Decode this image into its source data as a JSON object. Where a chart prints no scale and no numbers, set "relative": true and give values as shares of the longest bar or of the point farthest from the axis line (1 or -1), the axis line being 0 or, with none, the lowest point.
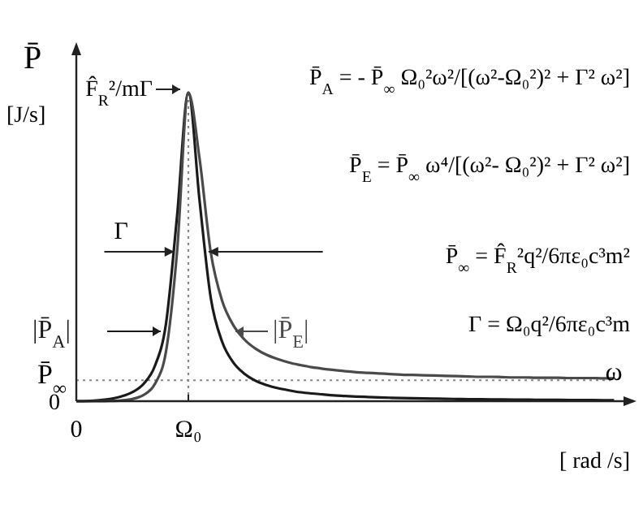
{
  "chart_data": {
    "type": "line",
    "relative": true,
    "ylabel": "P̄",
    "xlabel": "ω",
    "categories": [
      "0",
      null,
      null,
      null,
      null,
      null,
      null,
      null,
      null,
      null,
      "Ω₀",
      null,
      null,
      null,
      null,
      null,
      null,
      null,
      null,
      null,
      null,
      null,
      null,
      null,
      null,
      null,
      null,
      null,
      null,
      null,
      null,
      null,
      null,
      null,
      null,
      null,
      null,
      null,
      null,
      null,
      null,
      null,
      null,
      null,
      null,
      null,
      null,
      null,
      null
    ],
    "series": [
      {
        "name": "|P̄$_{A}$|",
        "color": "#1a1a1a",
        "values": [
          0,
          0.0007,
          0.0029,
          0.0073,
          0.0151,
          0.029,
          0.056,
          0.113,
          0.25,
          0.603,
          1,
          0.65,
          0.335,
          0.194,
          0.126,
          0.089,
          0.066,
          0.052,
          0.042,
          0.035,
          0.029,
          0.025,
          0.022,
          0.019,
          0.017,
          0.015,
          0.0136,
          0.0123,
          0.0112,
          0.0102,
          0.0094,
          0.0087,
          0.0081,
          0.0075,
          0.007,
          0.0065,
          0.0061,
          0.0057,
          0.0054,
          0.0051,
          0.0048,
          0.0045,
          0.0043,
          0.0041,
          0.0039,
          0.0037,
          0.0035,
          0.0033,
          0.0032
        ]
      },
      {
        "name": "|P̄$_{E}$|",
        "color": "#4a4a4a",
        "values": [
          0,
          0,
          0.0001,
          0.0007,
          0.0024,
          0.007,
          0.02,
          0.055,
          0.16,
          0.488,
          1,
          0.786,
          0.482,
          0.327,
          0.247,
          0.2,
          0.17,
          0.15,
          0.136,
          0.125,
          0.117,
          0.11,
          0.105,
          0.101,
          0.097,
          0.094,
          0.092,
          0.09,
          0.088,
          0.086,
          0.085,
          0.084,
          0.083,
          0.082,
          0.081,
          0.08,
          0.079,
          0.079,
          0.078,
          0.077,
          0.077,
          0.076,
          0.076,
          0.076,
          0.075,
          0.075,
          0.075,
          0.074,
          0.074
        ]
      }
    ],
    "ref_lines": [
      {
        "axis": "y",
        "value": 0.0676,
        "label": "P̄$_{∞}$",
        "line_style": "dotted",
        "color": "#888888"
      },
      {
        "axis": "x",
        "value": "Ω₀",
        "line_style": "dotted",
        "color": "#888888"
      }
    ],
    "annotations": [
      "P̄$_{A}$ = - P̄$_{∞}$ Ω₀²ω²/[(ω²-Ω₀²)² + Γ² ω²]",
      "P̄$_{E}$ = P̄$_{∞}$ ω⁴/[(ω²- Ω₀²)² + Γ² ω²]",
      "P̄$_{∞}$ = F̂$_{R}$²q²/6πε₀c³m²",
      "Γ = Ω₀q²/6πε₀c³m",
      "[J/s]",
      "[ rad /s]",
      "0",
      "Γ",
      {
        "text": "F̂$_{R}$²/mΓ",
        "x": "Ω₀",
        "y": 1
      }
    ],
    "line_style": "solid"
  }
}
